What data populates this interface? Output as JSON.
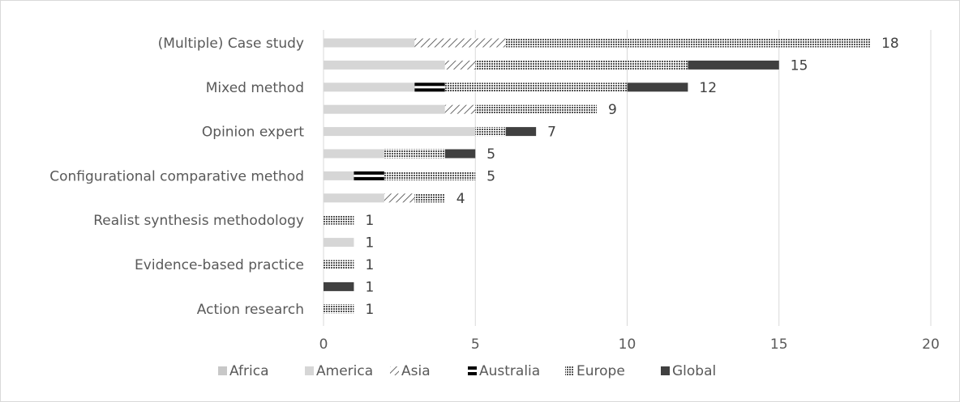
{
  "chart_data": {
    "type": "bar",
    "orientation": "horizontal",
    "stacked": true,
    "categories": [
      "(Multiple) Case study",
      "",
      "Mixed method",
      "",
      "Opinion expert",
      "",
      "Configurational comparative method",
      "",
      "Realist synthesis methodology",
      "",
      "Evidence-based practice",
      "",
      "Action research"
    ],
    "series": [
      {
        "name": "Africa",
        "values": [
          0,
          0,
          0,
          0,
          0,
          0,
          0,
          0,
          0,
          0,
          0,
          0,
          0
        ]
      },
      {
        "name": "America",
        "values": [
          3,
          4,
          3,
          4,
          5,
          2,
          1,
          2,
          0,
          1,
          0,
          0,
          0
        ]
      },
      {
        "name": "Asia",
        "values": [
          3,
          1,
          0,
          1,
          0,
          0,
          0,
          1,
          0,
          0,
          0,
          0,
          0
        ]
      },
      {
        "name": "Australia",
        "values": [
          0,
          0,
          1,
          0,
          0,
          0,
          1,
          0,
          0,
          0,
          0,
          0,
          0
        ]
      },
      {
        "name": "Europe",
        "values": [
          12,
          7,
          6,
          4,
          1,
          2,
          3,
          1,
          1,
          0,
          1,
          0,
          1
        ]
      },
      {
        "name": "Global",
        "values": [
          0,
          3,
          2,
          0,
          1,
          1,
          0,
          0,
          0,
          0,
          0,
          1,
          0
        ]
      }
    ],
    "totals": [
      "18",
      "15",
      "12",
      "9",
      "7",
      "5",
      "5",
      "4",
      "1",
      "1",
      "1",
      "1",
      "1"
    ],
    "xlim": [
      0,
      20
    ],
    "xticks": [
      "0",
      "5",
      "10",
      "15",
      "20"
    ],
    "grid": true,
    "legend_position": "bottom"
  },
  "colors": {
    "Africa": "#c8c8c8",
    "America": "#d6d6d6",
    "Asia": "#404040",
    "Australia": "#000000",
    "Europe": "#555555",
    "Global": "#404040",
    "grid": "#d9d9d9",
    "border": "#d9d9d9"
  }
}
